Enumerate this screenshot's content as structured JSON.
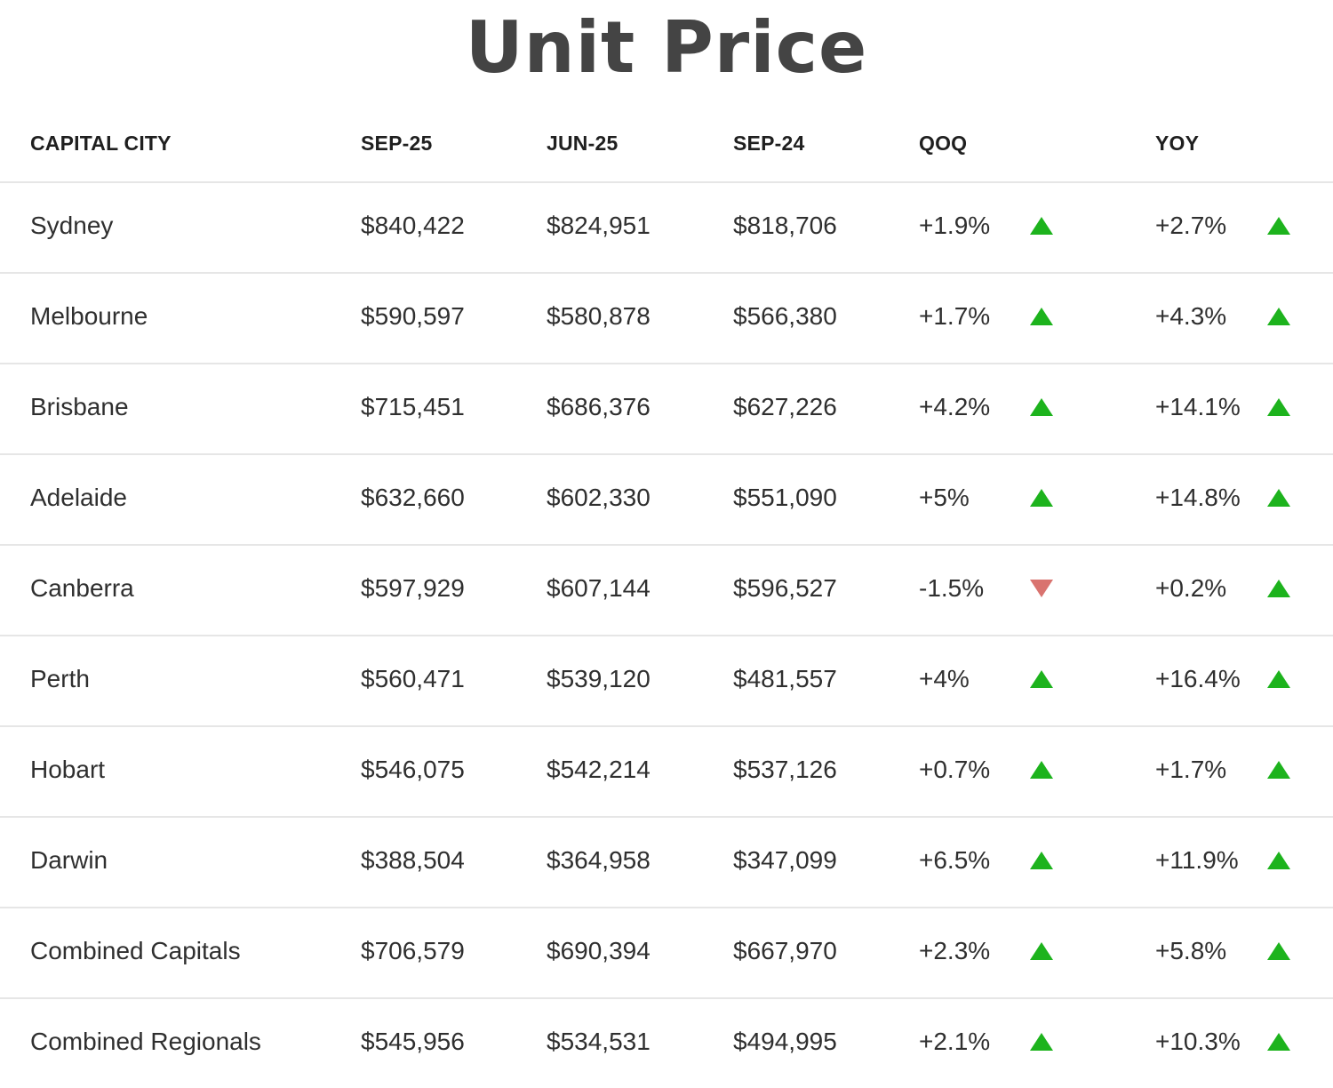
{
  "title": "Unit Price",
  "table": {
    "headers": {
      "city": "CAPITAL CITY",
      "sep25": "SEP-25",
      "jun25": "JUN-25",
      "sep24": "SEP-24",
      "qoq": "QOQ",
      "yoy": "YOY"
    },
    "rows": [
      {
        "city": "Sydney",
        "sep25": "$840,422",
        "jun25": "$824,951",
        "sep24": "$818,706",
        "qoq": "+1.9%",
        "qoq_dir": "up",
        "yoy": "+2.7%",
        "yoy_dir": "up"
      },
      {
        "city": "Melbourne",
        "sep25": "$590,597",
        "jun25": "$580,878",
        "sep24": "$566,380",
        "qoq": "+1.7%",
        "qoq_dir": "up",
        "yoy": "+4.3%",
        "yoy_dir": "up"
      },
      {
        "city": "Brisbane",
        "sep25": "$715,451",
        "jun25": "$686,376",
        "sep24": "$627,226",
        "qoq": "+4.2%",
        "qoq_dir": "up",
        "yoy": "+14.1%",
        "yoy_dir": "up"
      },
      {
        "city": "Adelaide",
        "sep25": "$632,660",
        "jun25": "$602,330",
        "sep24": "$551,090",
        "qoq": "+5%",
        "qoq_dir": "up",
        "yoy": "+14.8%",
        "yoy_dir": "up"
      },
      {
        "city": "Canberra",
        "sep25": "$597,929",
        "jun25": "$607,144",
        "sep24": "$596,527",
        "qoq": "-1.5%",
        "qoq_dir": "down",
        "yoy": "+0.2%",
        "yoy_dir": "up"
      },
      {
        "city": "Perth",
        "sep25": "$560,471",
        "jun25": "$539,120",
        "sep24": "$481,557",
        "qoq": "+4%",
        "qoq_dir": "up",
        "yoy": "+16.4%",
        "yoy_dir": "up"
      },
      {
        "city": "Hobart",
        "sep25": "$546,075",
        "jun25": "$542,214",
        "sep24": "$537,126",
        "qoq": "+0.7%",
        "qoq_dir": "up",
        "yoy": "+1.7%",
        "yoy_dir": "up"
      },
      {
        "city": "Darwin",
        "sep25": "$388,504",
        "jun25": "$364,958",
        "sep24": "$347,099",
        "qoq": "+6.5%",
        "qoq_dir": "up",
        "yoy": "+11.9%",
        "yoy_dir": "up"
      },
      {
        "city": "Combined Capitals",
        "sep25": "$706,579",
        "jun25": "$690,394",
        "sep24": "$667,970",
        "qoq": "+2.3%",
        "qoq_dir": "up",
        "yoy": "+5.8%",
        "yoy_dir": "up"
      },
      {
        "city": "Combined Regionals",
        "sep25": "$545,956",
        "jun25": "$534,531",
        "sep24": "$494,995",
        "qoq": "+2.1%",
        "qoq_dir": "up",
        "yoy": "+10.3%",
        "yoy_dir": "up"
      }
    ]
  },
  "colors": {
    "up": "#1db31d",
    "down": "#d9736f",
    "divider": "#e6e6e6",
    "title": "#444444"
  },
  "icons": {
    "up": "triangle-up-icon",
    "down": "triangle-down-icon"
  }
}
